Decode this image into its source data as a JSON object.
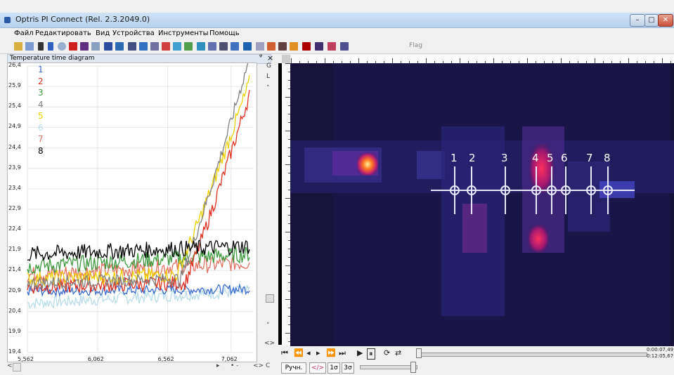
{
  "window": {
    "title": "Optris PI Connect (Rel. 2.3.2049.0)",
    "min": "–",
    "max": "□",
    "close": "✕"
  },
  "menu": [
    "Файл",
    "Редактировать",
    "Вид",
    "Устройства",
    "Инструменты",
    "Помощь"
  ],
  "toolbar": {
    "flag_label": "Flag"
  },
  "panel": {
    "title": "Temperature time diagram",
    "pin": "ᵠ",
    "close": "×"
  },
  "side_icons": [
    "G",
    "L",
    "˄",
    "˅",
    "<>"
  ],
  "chart_data": {
    "type": "line",
    "y_ticks": [
      "26,4",
      "25,9",
      "25,4",
      "24,9",
      "24,4",
      "23,9",
      "23,4",
      "22,9",
      "22,4",
      "21,9",
      "21,4",
      "20,9",
      "20,4",
      "19,9",
      "19,4"
    ],
    "x_ticks": [
      "5,562",
      "6,062",
      "6,562",
      "7,062"
    ],
    "ylim": [
      19.4,
      26.4
    ],
    "legend": [
      "1",
      "2",
      "3",
      "4",
      "5",
      "6",
      "7",
      "8"
    ],
    "series_colors": [
      "#3a6bd0",
      "#e03020",
      "#3d9a3d",
      "#808080",
      "#f0d000",
      "#b8dde8",
      "#e07060",
      "#000000"
    ],
    "series": [
      {
        "name": "1",
        "start": 20.9,
        "end": 20.95,
        "noise": 0.12,
        "rise_at": null
      },
      {
        "name": "2",
        "start": 21.0,
        "end": 25.7,
        "noise": 0.18,
        "rise_at": 0.7
      },
      {
        "name": "3",
        "start": 21.5,
        "end": 21.8,
        "noise": 0.2,
        "rise_at": null
      },
      {
        "name": "4",
        "start": 21.1,
        "end": 26.6,
        "noise": 0.15,
        "rise_at": 0.68
      },
      {
        "name": "5",
        "start": 21.2,
        "end": 26.0,
        "noise": 0.18,
        "rise_at": 0.66
      },
      {
        "name": "6",
        "start": 20.6,
        "end": 20.9,
        "noise": 0.15,
        "rise_at": null
      },
      {
        "name": "7",
        "start": 21.3,
        "end": 21.6,
        "noise": 0.2,
        "rise_at": null
      },
      {
        "name": "8",
        "start": 21.8,
        "end": 22.0,
        "noise": 0.2,
        "rise_at": null
      }
    ]
  },
  "thermal": {
    "points": [
      "1",
      "2",
      "3",
      "4",
      "5",
      "6",
      "7",
      "8"
    ]
  },
  "playback": {
    "time_elapsed": "0:00:07,49",
    "time_total": "0:12:05,67"
  },
  "bottom": {
    "btn_manual": "Ручн.",
    "btn_toggle": "</>",
    "btn_1": "1σ",
    "btn_3": "3σ"
  },
  "scroll": {
    "left": "<",
    "right": "▸",
    "dots": "• -",
    "arrows": "<> C"
  }
}
